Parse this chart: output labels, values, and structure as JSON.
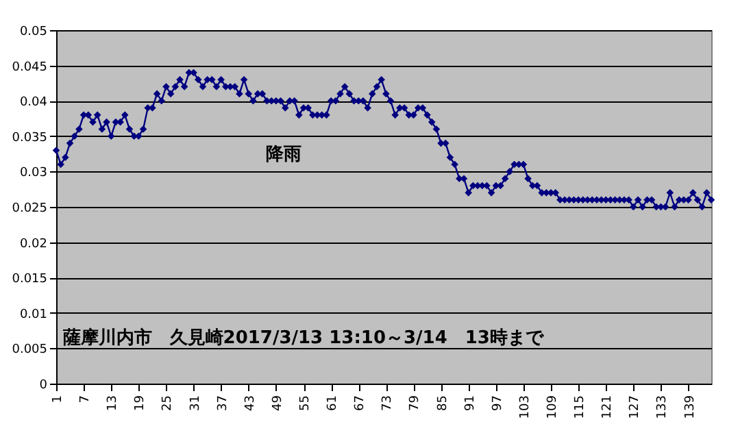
{
  "chart_data": {
    "type": "line",
    "annotations": [
      "降雨",
      "薩摩川内市　久見崎2017/3/13 13:10～3/14　13時まで"
    ],
    "categories": [
      "1",
      null,
      null,
      null,
      null,
      null,
      "7",
      null,
      null,
      null,
      null,
      null,
      "13",
      null,
      null,
      null,
      null,
      null,
      "19",
      null,
      null,
      null,
      null,
      null,
      "25",
      null,
      null,
      null,
      null,
      null,
      "31",
      null,
      null,
      null,
      null,
      null,
      "37",
      null,
      null,
      null,
      null,
      null,
      "43",
      null,
      null,
      null,
      null,
      null,
      "49",
      null,
      null,
      null,
      null,
      null,
      "55",
      null,
      null,
      null,
      null,
      null,
      "61",
      null,
      null,
      null,
      null,
      null,
      "67",
      null,
      null,
      null,
      null,
      null,
      "73",
      null,
      null,
      null,
      null,
      null,
      "79",
      null,
      null,
      null,
      null,
      null,
      "85",
      null,
      null,
      null,
      null,
      null,
      "91",
      null,
      null,
      null,
      null,
      null,
      "97",
      null,
      null,
      null,
      null,
      null,
      "103",
      null,
      null,
      null,
      null,
      null,
      "109",
      null,
      null,
      null,
      null,
      null,
      "115",
      null,
      null,
      null,
      null,
      null,
      "121",
      null,
      null,
      null,
      null,
      null,
      "127",
      null,
      null,
      null,
      null,
      null,
      "133",
      null,
      null,
      null,
      null,
      null,
      "139",
      null,
      null,
      null,
      null,
      null
    ],
    "series": [
      {
        "color": "#000080",
        "values": [
          0.033,
          0.031,
          0.032,
          0.034,
          0.035,
          0.036,
          0.038,
          0.038,
          0.037,
          0.038,
          0.036,
          0.037,
          0.035,
          0.037,
          0.037,
          0.038,
          0.036,
          0.035,
          0.035,
          0.036,
          0.039,
          0.039,
          0.041,
          0.04,
          0.042,
          0.041,
          0.042,
          0.043,
          0.042,
          0.044,
          0.044,
          0.043,
          0.042,
          0.043,
          0.043,
          0.042,
          0.043,
          0.042,
          0.042,
          0.042,
          0.041,
          0.043,
          0.041,
          0.04,
          0.041,
          0.041,
          0.04,
          0.04,
          0.04,
          0.04,
          0.039,
          0.04,
          0.04,
          0.038,
          0.039,
          0.039,
          0.038,
          0.038,
          0.038,
          0.038,
          0.04,
          0.04,
          0.041,
          0.042,
          0.041,
          0.04,
          0.04,
          0.04,
          0.039,
          0.041,
          0.042,
          0.043,
          0.041,
          0.04,
          0.038,
          0.039,
          0.039,
          0.038,
          0.038,
          0.039,
          0.039,
          0.038,
          0.037,
          0.036,
          0.034,
          0.034,
          0.032,
          0.031,
          0.029,
          0.029,
          0.027,
          0.028,
          0.028,
          0.028,
          0.028,
          0.027,
          0.028,
          0.028,
          0.029,
          0.03,
          0.031,
          0.031,
          0.031,
          0.029,
          0.028,
          0.028,
          0.027,
          0.027,
          0.027,
          0.027,
          0.026,
          0.026,
          0.026,
          0.026,
          0.026,
          0.026,
          0.026,
          0.026,
          0.026,
          0.026,
          0.026,
          0.026,
          0.026,
          0.026,
          0.026,
          0.026,
          0.025,
          0.026,
          0.025,
          0.026,
          0.026,
          0.025,
          0.025,
          0.025,
          0.027,
          0.025,
          0.026,
          0.026,
          0.026,
          0.027,
          0.026,
          0.025,
          0.027,
          0.026
        ]
      }
    ],
    "ylim": [
      0,
      0.05
    ],
    "yticks": [
      0,
      0.005,
      0.01,
      0.015,
      0.02,
      0.025,
      0.03,
      0.035,
      0.04,
      0.045,
      0.05
    ],
    "grid": "y",
    "marker": "diamond",
    "line_style": "solid"
  }
}
